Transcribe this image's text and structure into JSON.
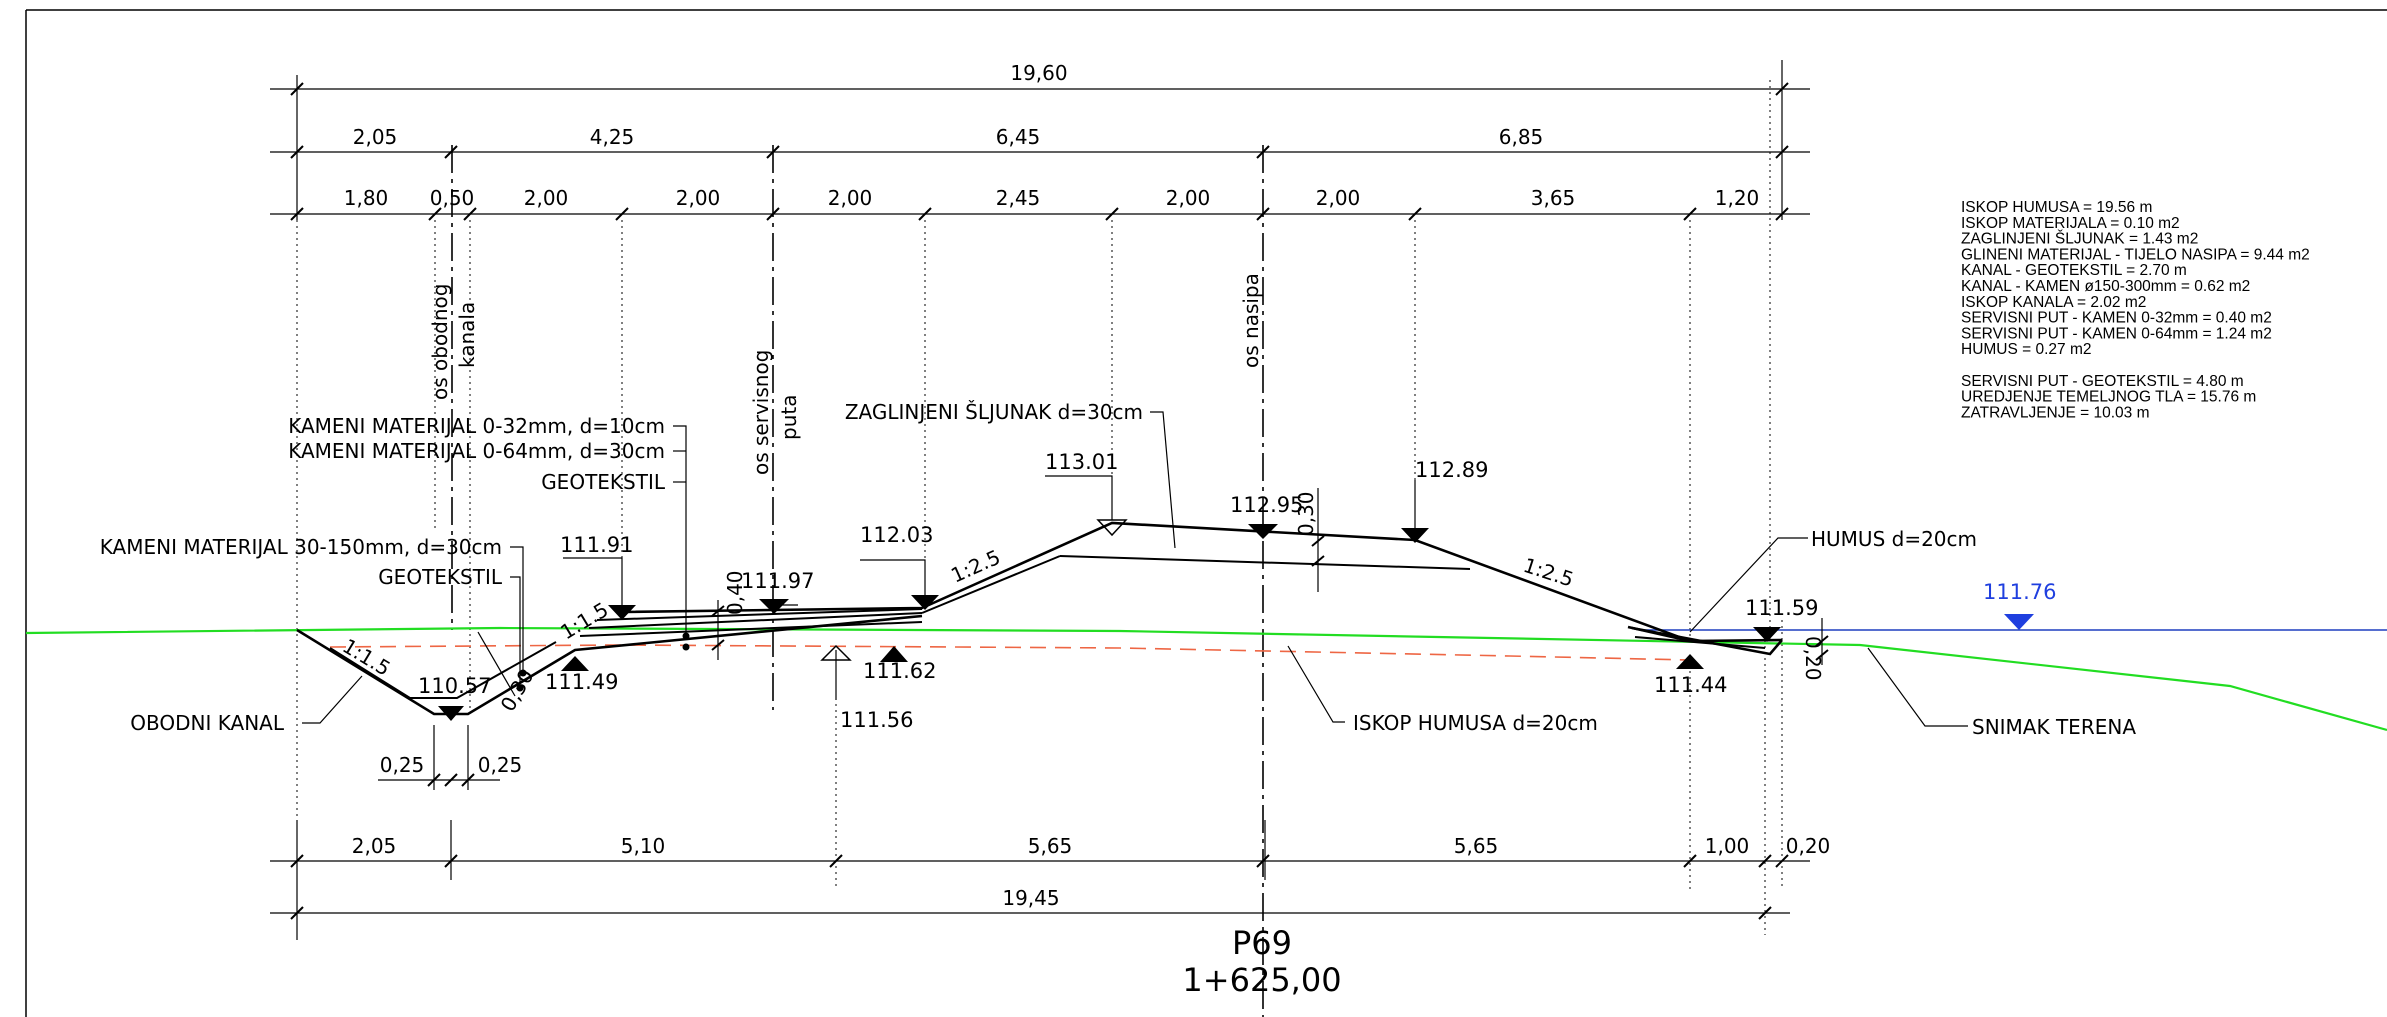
{
  "dims": {
    "top_total": "19,60",
    "row2": [
      "2,05",
      "4,25",
      "6,45",
      "6,85"
    ],
    "row3": [
      "1,80",
      "0,50",
      "2,00",
      "2,00",
      "2,00",
      "2,45",
      "2,00",
      "2,00",
      "3,65",
      "1,20"
    ],
    "bottom_row1": [
      "2,05",
      "5,10",
      "5,65",
      "5,65",
      "1,00",
      "0,20"
    ],
    "bottom_total": "19,45",
    "small_left": "0,25",
    "small_right": "0,25",
    "t_030_canal": "0,30",
    "t_040": "0,40",
    "t_030_top": "0,30",
    "t_020": "0,20"
  },
  "axes": {
    "canal_line1": "os obodnog",
    "canal_line2": "kanala",
    "road_line1": "os servisnog",
    "road_line2": "puta",
    "dike": "os nasipa"
  },
  "labels": {
    "k0_32": "KAMENI MATERIJAL 0-32mm, d=10cm",
    "k0_64": "KAMENI MATERIJAL 0-64mm, d=30cm",
    "geotekstil1": "GEOTEKSTIL",
    "k30_150": "KAMENI MATERIJAL 30-150mm, d=30cm",
    "geotekstil2": "GEOTEKSTIL",
    "zaglinjeni": "ZAGLINJENI ŠLJUNAK d=30cm",
    "obodni": "OBODNI KANAL",
    "iskop": "ISKOP HUMUSA d=20cm",
    "humus": "HUMUS d=20cm",
    "snimak": "SNIMAK TERENA",
    "slope_canal_left": "1:1.5",
    "slope_canal_right": "1:1.5",
    "slope_left": "1:2.5",
    "slope_right": "1:2.5"
  },
  "elevations": {
    "e111_91": "111.91",
    "e111_97": "111.97",
    "e112_03": "112.03",
    "e113_01": "113.01",
    "e112_95": "112.95",
    "e112_89": "112.89",
    "e110_57": "110.57",
    "e111_49": "111.49",
    "e111_62": "111.62",
    "e111_56": "111.56",
    "e111_59": "111.59",
    "e111_44": "111.44",
    "water": "111.76"
  },
  "profile": {
    "name": "P69",
    "station": "1+625,00"
  },
  "quantities": [
    "ISKOP HUMUSA = 19.56 m",
    "ISKOP MATERIJALA = 0.10 m2",
    "ZAGLINJENI ŠLJUNAK = 1.43 m2",
    "GLINENI MATERIJAL - TIJELO NASIPA = 9.44 m2",
    "KANAL - GEOTEKSTIL = 2.70 m",
    "KANAL - KAMEN ø150-300mm = 0.62 m2",
    "ISKOP KANALA = 2.02 m2",
    "SERVISNI PUT - KAMEN 0-32mm = 0.40 m2",
    "SERVISNI PUT - KAMEN 0-64mm = 1.24 m2",
    "HUMUS = 0.27 m2",
    "",
    "SERVISNI PUT - GEOTEKSTIL = 4.80 m",
    "UREDJENJE TEMELJNOG TLA = 15.76 m",
    "ZATRAVLJENJE = 10.03 m"
  ],
  "colors": {
    "terrain": "#22dd22",
    "water": "#1f3fbf",
    "water_label": "#1f3fdf",
    "humus_excavation": "#ee6644",
    "frame": "#000000"
  }
}
